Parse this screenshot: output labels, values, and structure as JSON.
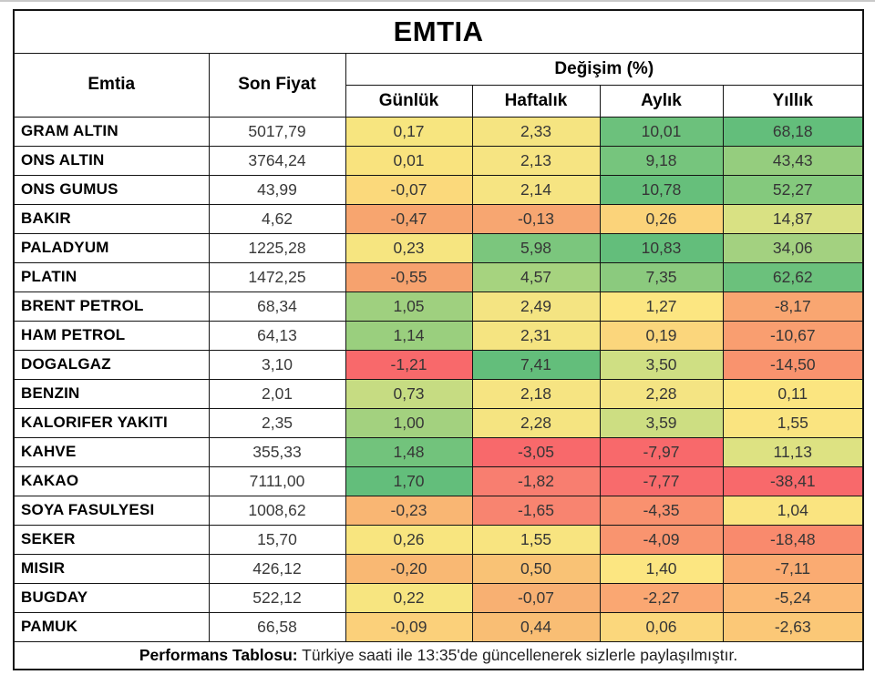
{
  "title": "EMTIA",
  "columns": {
    "commodity": "Emtia",
    "price": "Son Fiyat",
    "change_group": "Değişim (%)",
    "daily": "Günlük",
    "weekly": "Haftalık",
    "monthly": "Aylık",
    "yearly": "Yıllık"
  },
  "footer": {
    "label": "Performans Tablosu:",
    "text": " Türkiye saati ile 13:35'de güncellenerek sizlerle paylaşılmıştır."
  },
  "palette": {
    "strong_green": "#63BE7B",
    "yellow": "#F5E481",
    "red": "#F8696B"
  },
  "chart_data": {
    "type": "table",
    "title": "EMTIA",
    "column_group_label": "Değişim (%)",
    "columns": [
      "Emtia",
      "Son Fiyat",
      "Günlük",
      "Haftalık",
      "Aylık",
      "Yıllık"
    ],
    "rows": [
      {
        "name": "GRAM ALTIN",
        "price": "5017,79",
        "changes": [
          {
            "value": "0,17",
            "bg": "#F7E57F"
          },
          {
            "value": "2,33",
            "bg": "#F5E481"
          },
          {
            "value": "10,01",
            "bg": "#6CC17C"
          },
          {
            "value": "68,18",
            "bg": "#63BE7B"
          }
        ]
      },
      {
        "name": "ONS ALTIN",
        "price": "3764,24",
        "changes": [
          {
            "value": "0,01",
            "bg": "#F9E37E"
          },
          {
            "value": "2,13",
            "bg": "#F6E482"
          },
          {
            "value": "9,18",
            "bg": "#76C57D"
          },
          {
            "value": "43,43",
            "bg": "#95CD7E"
          }
        ]
      },
      {
        "name": "ONS GUMUS",
        "price": "43,99",
        "changes": [
          {
            "value": "-0,07",
            "bg": "#FBD97B"
          },
          {
            "value": "2,14",
            "bg": "#F6E482"
          },
          {
            "value": "10,78",
            "bg": "#66BF7B"
          },
          {
            "value": "52,27",
            "bg": "#84C97D"
          }
        ]
      },
      {
        "name": "BAKIR",
        "price": "4,62",
        "changes": [
          {
            "value": "-0,47",
            "bg": "#F7A56F"
          },
          {
            "value": "-0,13",
            "bg": "#F7A671"
          },
          {
            "value": "0,26",
            "bg": "#FBD37A"
          },
          {
            "value": "14,87",
            "bg": "#D9E183"
          }
        ]
      },
      {
        "name": "PALADYUM",
        "price": "1225,28",
        "changes": [
          {
            "value": "0,23",
            "bg": "#F6E580"
          },
          {
            "value": "5,98",
            "bg": "#7BC67D"
          },
          {
            "value": "10,83",
            "bg": "#63BE7B"
          },
          {
            "value": "34,06",
            "bg": "#A3D180"
          }
        ]
      },
      {
        "name": "PLATIN",
        "price": "1472,25",
        "changes": [
          {
            "value": "-0,55",
            "bg": "#F6A26E"
          },
          {
            "value": "4,57",
            "bg": "#A6D37F"
          },
          {
            "value": "7,35",
            "bg": "#8BCA7E"
          },
          {
            "value": "62,62",
            "bg": "#6BC17C"
          }
        ]
      },
      {
        "name": "BRENT PETROL",
        "price": "68,34",
        "changes": [
          {
            "value": "1,05",
            "bg": "#9FD07F"
          },
          {
            "value": "2,49",
            "bg": "#F4E482"
          },
          {
            "value": "1,27",
            "bg": "#FCE681"
          },
          {
            "value": "-8,17",
            "bg": "#F9A671"
          }
        ]
      },
      {
        "name": "HAM PETROL",
        "price": "64,13",
        "changes": [
          {
            "value": "1,14",
            "bg": "#9ACF7E"
          },
          {
            "value": "2,31",
            "bg": "#F5E481"
          },
          {
            "value": "0,19",
            "bg": "#FBD67C"
          },
          {
            "value": "-10,67",
            "bg": "#F99E70"
          }
        ]
      },
      {
        "name": "DOGALGAZ",
        "price": "3,10",
        "changes": [
          {
            "value": "-1,21",
            "bg": "#F8696B"
          },
          {
            "value": "7,41",
            "bg": "#63BE7B"
          },
          {
            "value": "3,50",
            "bg": "#CFDF83"
          },
          {
            "value": "-14,50",
            "bg": "#F9936E"
          }
        ]
      },
      {
        "name": "BENZIN",
        "price": "2,01",
        "changes": [
          {
            "value": "0,73",
            "bg": "#C6DC82"
          },
          {
            "value": "2,18",
            "bg": "#F6E482"
          },
          {
            "value": "2,28",
            "bg": "#F4E483"
          },
          {
            "value": "0,11",
            "bg": "#FBE580"
          }
        ]
      },
      {
        "name": "KALORIFER YAKITI",
        "price": "2,35",
        "changes": [
          {
            "value": "1,00",
            "bg": "#A3D17F"
          },
          {
            "value": "2,28",
            "bg": "#F5E481"
          },
          {
            "value": "3,59",
            "bg": "#CDDE82"
          },
          {
            "value": "1,55",
            "bg": "#FAE480"
          }
        ]
      },
      {
        "name": "KAHVE",
        "price": "355,33",
        "changes": [
          {
            "value": "1,48",
            "bg": "#72C37C"
          },
          {
            "value": "-3,05",
            "bg": "#F8696B"
          },
          {
            "value": "-7,97",
            "bg": "#F8696B"
          },
          {
            "value": "11,13",
            "bg": "#DDE282"
          }
        ]
      },
      {
        "name": "KAKAO",
        "price": "7111,00",
        "changes": [
          {
            "value": "1,70",
            "bg": "#63BE7B"
          },
          {
            "value": "-1,82",
            "bg": "#F87E70"
          },
          {
            "value": "-7,77",
            "bg": "#F86B6C"
          },
          {
            "value": "-38,41",
            "bg": "#F8696B"
          }
        ]
      },
      {
        "name": "SOYA FASULYESI",
        "price": "1008,62",
        "changes": [
          {
            "value": "-0,23",
            "bg": "#F9B673"
          },
          {
            "value": "-1,65",
            "bg": "#F88470"
          },
          {
            "value": "-4,35",
            "bg": "#F9916F"
          },
          {
            "value": "1,04",
            "bg": "#FAE480"
          }
        ]
      },
      {
        "name": "SEKER",
        "price": "15,70",
        "changes": [
          {
            "value": "0,26",
            "bg": "#F8E57F"
          },
          {
            "value": "1,55",
            "bg": "#F8E480"
          },
          {
            "value": "-4,09",
            "bg": "#F9946F"
          },
          {
            "value": "-18,48",
            "bg": "#F98A6D"
          }
        ]
      },
      {
        "name": "MISIR",
        "price": "426,12",
        "changes": [
          {
            "value": "-0,20",
            "bg": "#F9B873"
          },
          {
            "value": "0,50",
            "bg": "#F9C275"
          },
          {
            "value": "1,40",
            "bg": "#FCE681"
          },
          {
            "value": "-7,11",
            "bg": "#FAAB72"
          }
        ]
      },
      {
        "name": "BUGDAY",
        "price": "522,12",
        "changes": [
          {
            "value": "0,22",
            "bg": "#F7E580"
          },
          {
            "value": "-0,07",
            "bg": "#F8B072"
          },
          {
            "value": "-2,27",
            "bg": "#FAA772"
          },
          {
            "value": "-5,24",
            "bg": "#FBB975"
          }
        ]
      },
      {
        "name": "PAMUK",
        "price": "66,58",
        "changes": [
          {
            "value": "-0,09",
            "bg": "#FBD07A"
          },
          {
            "value": "0,44",
            "bg": "#F9BE74"
          },
          {
            "value": "0,06",
            "bg": "#FBD77C"
          },
          {
            "value": "-2,63",
            "bg": "#FBC877"
          }
        ]
      }
    ],
    "footnote": "Performans Tablosu: Türkiye saati ile 13:35'de güncellenerek sizlerle paylaşılmıştır."
  }
}
